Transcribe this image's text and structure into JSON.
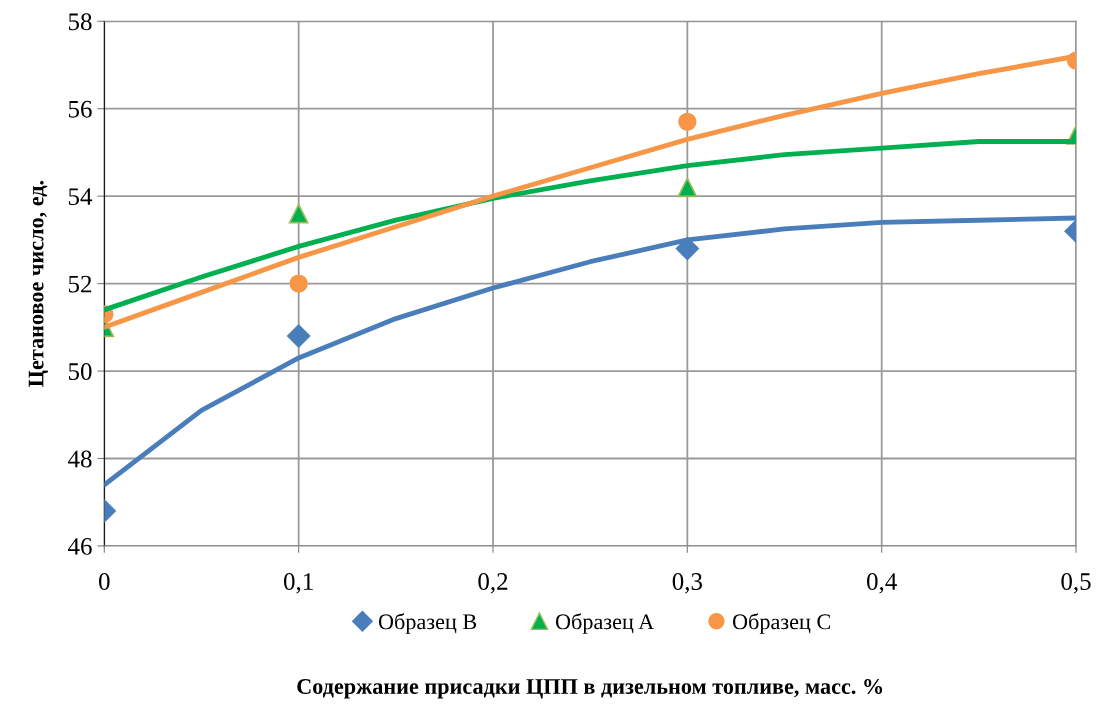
{
  "chart_data": {
    "type": "scatter",
    "xlabel": "Содержание присадки ЦПП в дизельном топливе, масс. %",
    "ylabel": "Цетановое число, ед.",
    "xlim": [
      0,
      0.5
    ],
    "xticks": [
      0,
      {
        "value": 0.1,
        "label": "0,1"
      },
      {
        "value": 0.2,
        "label": "0,2"
      },
      {
        "value": 0.3,
        "label": "0,3"
      },
      {
        "value": 0.4,
        "label": "0,4"
      },
      {
        "value": 0.5,
        "label": "0,5"
      }
    ],
    "ylim": [
      46,
      58
    ],
    "yticks": [
      46,
      48,
      50,
      52,
      54,
      56,
      58
    ],
    "grid": true,
    "legend": "bottom",
    "series": [
      {
        "name": "Образец B",
        "marker": "diamond",
        "color": "#4a7ebb",
        "x": [
          0,
          0.1,
          0.3,
          0.5
        ],
        "values": [
          46.8,
          50.8,
          52.8,
          53.2
        ]
      },
      {
        "name": "Образец A",
        "marker": "triangle",
        "color": "#00b050",
        "x": [
          0,
          0.1,
          0.3,
          0.5
        ],
        "values": [
          51.0,
          53.6,
          54.2,
          55.4
        ]
      },
      {
        "name": "Образец C",
        "marker": "circle",
        "color": "#f79646",
        "x": [
          0,
          0.1,
          0.3,
          0.5
        ],
        "values": [
          51.3,
          52.0,
          55.7,
          57.1
        ]
      },
      {
        "type": "line",
        "marker": "none",
        "color": "#4a7ebb",
        "x": [
          0,
          0.05,
          0.1,
          0.15,
          0.2,
          0.25,
          0.3,
          0.35,
          0.4,
          0.45,
          0.5
        ],
        "values": [
          47.4,
          49.1,
          50.3,
          51.2,
          51.9,
          52.5,
          53.0,
          53.25,
          53.4,
          53.45,
          53.5
        ]
      },
      {
        "type": "line",
        "marker": "none",
        "color": "#00b050",
        "x": [
          0,
          0.05,
          0.1,
          0.15,
          0.2,
          0.25,
          0.3,
          0.35,
          0.4,
          0.45,
          0.5
        ],
        "values": [
          51.4,
          52.15,
          52.85,
          53.45,
          53.95,
          54.35,
          54.7,
          54.95,
          55.1,
          55.25,
          55.25
        ]
      },
      {
        "type": "line",
        "marker": "none",
        "color": "#f79646",
        "x": [
          0,
          0.05,
          0.1,
          0.15,
          0.2,
          0.25,
          0.3,
          0.35,
          0.4,
          0.45,
          0.5
        ],
        "values": [
          51.0,
          51.8,
          52.6,
          53.3,
          54.0,
          54.65,
          55.3,
          55.85,
          56.35,
          56.8,
          57.2
        ]
      }
    ]
  }
}
